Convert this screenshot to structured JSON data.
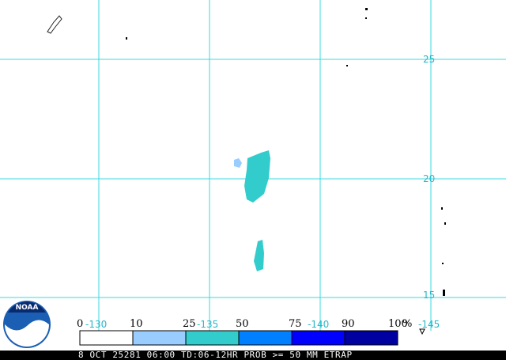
{
  "map": {
    "lat_labels": [
      "25",
      "20",
      "15"
    ],
    "lon_labels": [
      "-130",
      "-135",
      "-140",
      "-145"
    ]
  },
  "legend": {
    "labels": [
      "0",
      "10",
      "25",
      "50",
      "75",
      "90",
      "100"
    ],
    "unit": "%",
    "colors": [
      "#ffffff",
      "#99ccff",
      "#33cccc",
      "#0080ff",
      "#0000ff",
      "#0000a0"
    ]
  },
  "logo": "NOAA",
  "footer": "8 OCT 25281 06:00 TD:06-12HR PROB >= 50 MM ETRAP"
}
